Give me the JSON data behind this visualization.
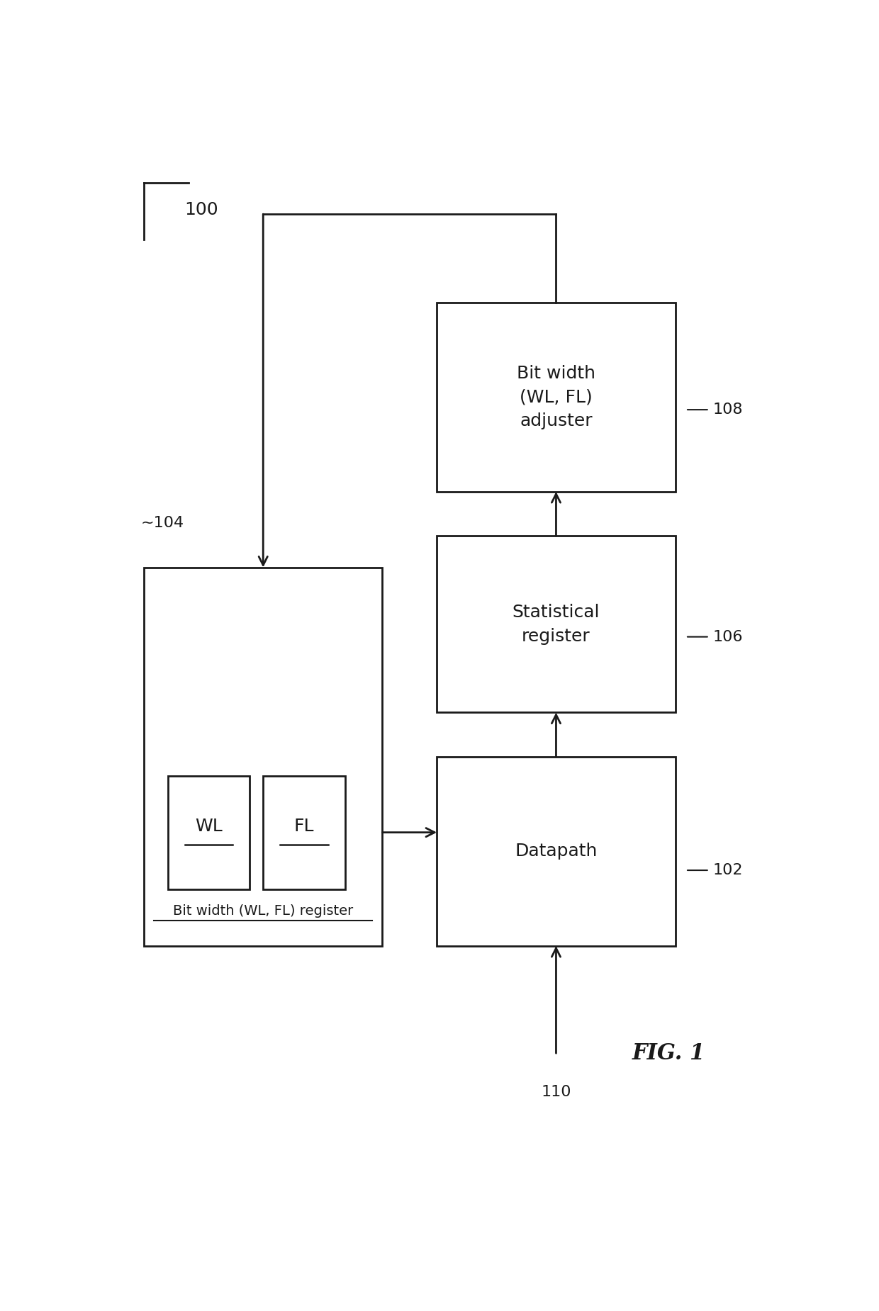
{
  "title": "FIG. 1",
  "label_100": "100",
  "label_104": "~104",
  "label_102": "102",
  "label_106": "106",
  "label_108": "108",
  "label_110": "110",
  "register_label": "Bit width (WL, FL) register",
  "wl_label": "WL",
  "fl_label": "FL",
  "datapath_label": "Datapath",
  "stat_register_label": "Statistical\nregister",
  "adjuster_label": "Bit width\n(WL, FL)\nadjuster",
  "bg_color": "#ffffff",
  "box_edge_color": "#1a1a1a",
  "text_color": "#1a1a1a",
  "line_color": "#1a1a1a",
  "fig_width": 12.4,
  "fig_height": 18.5
}
